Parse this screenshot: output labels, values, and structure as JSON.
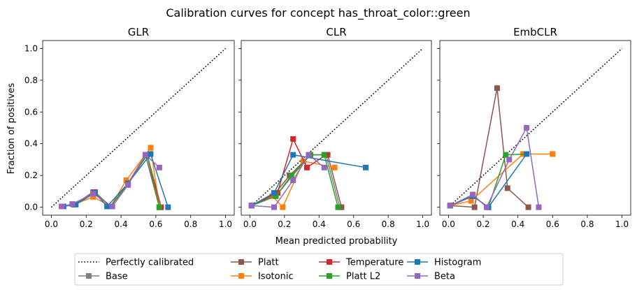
{
  "figure_title": "Calibration curves for concept has_throat_color::green",
  "x_axis_label": "Mean predicted probability",
  "y_axis_label": "Fraction of positives",
  "colors": {
    "Base": "#7f7f7f",
    "Platt": "#8c564b",
    "Isotonic": "#ff7f0e",
    "Temperature": "#d62728",
    "Platt L2": "#2ca02c",
    "Histogram": "#1f77b4",
    "Beta": "#9467bd",
    "reference": "#000000"
  },
  "legend": {
    "placement": "bottom-center",
    "reference_label": "Perfectly calibrated",
    "entries": [
      "Perfectly calibrated",
      "Base",
      "Platt",
      "Isotonic",
      "Temperature",
      "Platt L2",
      "Histogram",
      "Beta"
    ]
  },
  "chart_data": [
    {
      "type": "line",
      "title": "GLR",
      "xlabel": "",
      "ylabel": "Fraction of positives",
      "xlim": [
        -0.05,
        1.05
      ],
      "ylim": [
        -0.05,
        1.05
      ],
      "xticks": [
        "0.0",
        "0.2",
        "0.4",
        "0.6",
        "0.8",
        "1.0"
      ],
      "yticks": [
        "0.0",
        "0.2",
        "0.4",
        "0.6",
        "0.8",
        "1.0"
      ],
      "grid": false,
      "series": [
        {
          "name": "Base",
          "x": [
            0.06,
            0.13,
            0.25,
            0.34,
            0.44,
            0.55,
            0.62
          ],
          "y": [
            0.005,
            0.017,
            0.09,
            0.005,
            0.15,
            0.33,
            0.0
          ]
        },
        {
          "name": "Platt",
          "x": [
            0.06,
            0.13,
            0.24,
            0.34,
            0.44,
            0.54,
            0.62
          ],
          "y": [
            0.005,
            0.017,
            0.095,
            0.005,
            0.15,
            0.33,
            0.0
          ]
        },
        {
          "name": "Isotonic",
          "x": [
            0.06,
            0.13,
            0.24,
            0.34,
            0.43,
            0.57,
            0.62
          ],
          "y": [
            0.005,
            0.017,
            0.065,
            0.005,
            0.17,
            0.375,
            0.0
          ]
        },
        {
          "name": "Temperature",
          "x": [
            0.06,
            0.13,
            0.25,
            0.34,
            0.44,
            0.55,
            0.63
          ],
          "y": [
            0.005,
            0.017,
            0.095,
            0.005,
            0.15,
            0.33,
            0.0
          ]
        },
        {
          "name": "Platt L2",
          "x": [
            0.06,
            0.13,
            0.25,
            0.34,
            0.44,
            0.55,
            0.62
          ],
          "y": [
            0.005,
            0.017,
            0.09,
            0.005,
            0.15,
            0.33,
            0.0
          ]
        },
        {
          "name": "Histogram",
          "x": [
            0.07,
            0.14,
            0.25,
            0.32,
            0.44,
            0.57,
            0.67
          ],
          "y": [
            0.005,
            0.017,
            0.09,
            0.005,
            0.15,
            0.335,
            0.0
          ]
        },
        {
          "name": "Beta",
          "x": [
            0.06,
            0.12,
            0.24,
            0.35,
            0.44,
            0.54,
            0.62
          ],
          "y": [
            0.005,
            0.02,
            0.085,
            0.005,
            0.14,
            0.33,
            0.25
          ]
        }
      ]
    },
    {
      "type": "line",
      "title": "CLR",
      "xlabel": "Mean predicted probability",
      "ylabel": "",
      "xlim": [
        -0.05,
        1.05
      ],
      "ylim": [
        -0.05,
        1.05
      ],
      "xticks": [
        "0.0",
        "0.2",
        "0.4",
        "0.6",
        "0.8",
        "1.0"
      ],
      "yticks": [],
      "grid": false,
      "series": [
        {
          "name": "Base",
          "x": [
            0.01,
            0.15,
            0.24,
            0.35,
            0.44,
            0.52
          ],
          "y": [
            0.01,
            0.07,
            0.19,
            0.33,
            0.33,
            0.0
          ]
        },
        {
          "name": "Platt",
          "x": [
            0.01,
            0.14,
            0.23,
            0.35,
            0.45,
            0.53
          ],
          "y": [
            0.01,
            0.08,
            0.2,
            0.33,
            0.33,
            0.0
          ]
        },
        {
          "name": "Isotonic",
          "x": [
            0.01,
            0.13,
            0.19,
            0.31,
            0.49
          ],
          "y": [
            0.01,
            0.07,
            0.0,
            0.29,
            0.25
          ]
        },
        {
          "name": "Temperature",
          "x": [
            0.01,
            0.16,
            0.25,
            0.33,
            0.44
          ],
          "y": [
            0.01,
            0.09,
            0.43,
            0.25,
            0.33
          ]
        },
        {
          "name": "Platt L2",
          "x": [
            0.01,
            0.15,
            0.24,
            0.35,
            0.43,
            0.51
          ],
          "y": [
            0.01,
            0.07,
            0.2,
            0.33,
            0.33,
            0.0
          ]
        },
        {
          "name": "Histogram",
          "x": [
            0.01,
            0.14,
            0.25,
            0.67
          ],
          "y": [
            0.01,
            0.09,
            0.33,
            0.25
          ]
        },
        {
          "name": "Beta",
          "x": [
            0.01,
            0.14,
            0.25,
            0.34,
            0.43
          ],
          "y": [
            0.01,
            0.0,
            0.17,
            0.33,
            0.25
          ]
        }
      ]
    },
    {
      "type": "line",
      "title": "EmbCLR",
      "xlabel": "",
      "ylabel": "",
      "xlim": [
        -0.05,
        1.05
      ],
      "ylim": [
        -0.05,
        1.05
      ],
      "xticks": [
        "0.0",
        "0.2",
        "0.4",
        "0.6",
        "0.8",
        "1.0"
      ],
      "yticks": [],
      "grid": false,
      "series": [
        {
          "name": "Base",
          "x": [
            0.01,
            0.14,
            0.23
          ],
          "y": [
            0.01,
            0.07,
            0.0
          ]
        },
        {
          "name": "Platt",
          "x": [
            0.01,
            0.15,
            0.28,
            0.34,
            0.46
          ],
          "y": [
            0.01,
            0.0,
            0.75,
            0.12,
            0.0
          ]
        },
        {
          "name": "Isotonic",
          "x": [
            0.01,
            0.13,
            0.43,
            0.6
          ],
          "y": [
            0.01,
            0.04,
            0.335,
            0.335
          ]
        },
        {
          "name": "Temperature",
          "x": [
            0.01,
            0.14,
            0.23
          ],
          "y": [
            0.01,
            0.07,
            0.0
          ]
        },
        {
          "name": "Platt L2",
          "x": [
            0.01,
            0.14,
            0.23,
            0.33,
            0.45
          ],
          "y": [
            0.01,
            0.07,
            0.0,
            0.33,
            0.335
          ]
        },
        {
          "name": "Histogram",
          "x": [
            0.01,
            0.14,
            0.23,
            0.45
          ],
          "y": [
            0.01,
            0.07,
            0.0,
            0.335
          ]
        },
        {
          "name": "Beta",
          "x": [
            0.01,
            0.14,
            0.22,
            0.35,
            0.45,
            0.52
          ],
          "y": [
            0.01,
            0.08,
            0.0,
            0.3,
            0.5,
            0.0
          ]
        }
      ]
    }
  ]
}
